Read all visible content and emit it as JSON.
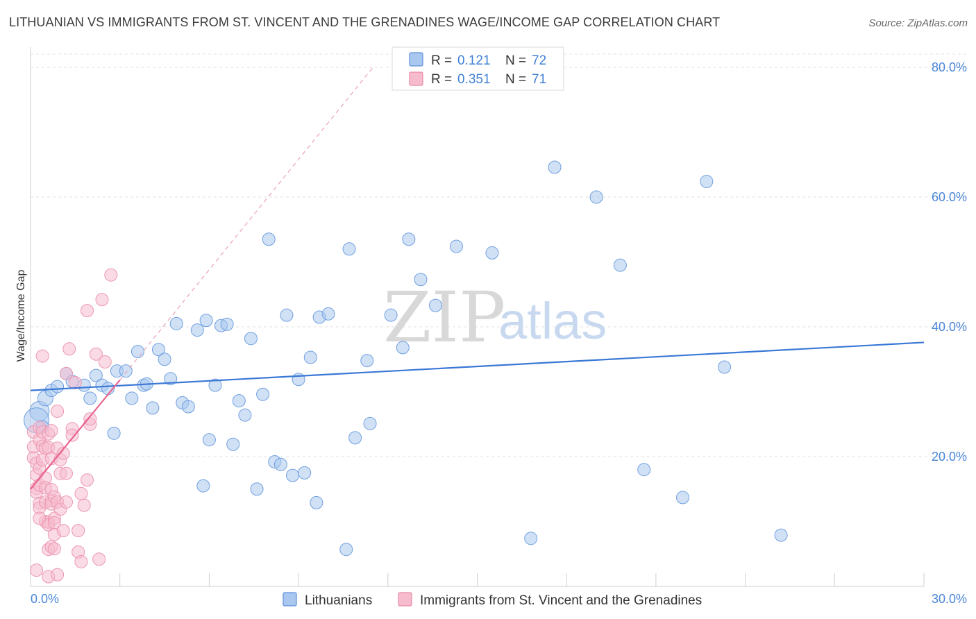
{
  "title": "LITHUANIAN VS IMMIGRANTS FROM ST. VINCENT AND THE GRENADINES WAGE/INCOME GAP CORRELATION CHART",
  "source": "Source: ZipAtlas.com",
  "watermark": {
    "zip": "ZIP",
    "atlas": "atlas"
  },
  "colors": {
    "blue": "#3a78d6",
    "blue_fill": "#aac8ef",
    "pink": "#e8638e",
    "pink_fill": "#f6bccd",
    "grid": "#e0e0e0",
    "axis_text": "#4a86d8"
  },
  "legend": {
    "rows": [
      {
        "r_label": "R =",
        "r_value": "0.121",
        "n_label": "N =",
        "n_value": "72"
      },
      {
        "r_label": "R =",
        "r_value": "0.351",
        "n_label": "N =",
        "n_value": "71"
      }
    ]
  },
  "bottom_legend": [
    "Lithuanians",
    "Immigrants from St. Vincent and the Grenadines"
  ],
  "chart_data": {
    "type": "scatter",
    "title": "LITHUANIAN VS IMMIGRANTS FROM ST. VINCENT AND THE GRENADINES WAGE/INCOME GAP CORRELATION CHART",
    "xlabel": "",
    "ylabel": "Wage/Income Gap",
    "xlim": [
      0,
      30
    ],
    "ylim": [
      0,
      80
    ],
    "x_tick_labels": [
      "0.0%",
      "30.0%"
    ],
    "y_tick_labels": [
      "20.0%",
      "40.0%",
      "60.0%",
      "80.0%"
    ],
    "y_ticks": [
      20,
      40,
      60,
      80
    ],
    "x_minor_ticks": [
      0,
      3,
      6,
      9,
      12,
      15,
      18,
      21,
      24,
      27,
      30
    ],
    "series": [
      {
        "name": "Lithuanians",
        "color": "blue",
        "R": 0.121,
        "N": 72,
        "trend": {
          "x": [
            0,
            30
          ],
          "y": [
            30.2,
            37.6
          ],
          "style": "solid"
        },
        "points": [
          [
            0.3,
            27.0,
            14
          ],
          [
            0.5,
            29.0,
            11
          ],
          [
            0.7,
            30.2,
            9
          ],
          [
            0.9,
            30.8,
            9
          ],
          [
            1.2,
            32.8,
            9
          ],
          [
            1.4,
            31.6,
            9
          ],
          [
            1.8,
            31.0,
            9
          ],
          [
            2.0,
            29.0,
            9
          ],
          [
            2.2,
            32.5,
            9
          ],
          [
            2.4,
            31.0,
            9
          ],
          [
            2.6,
            30.5,
            9
          ],
          [
            2.8,
            23.6,
            9
          ],
          [
            2.9,
            33.2,
            9
          ],
          [
            3.2,
            33.2,
            9
          ],
          [
            3.4,
            29.0,
            9
          ],
          [
            3.6,
            36.2,
            9
          ],
          [
            3.8,
            31.0,
            9
          ],
          [
            3.9,
            31.2,
            9
          ],
          [
            4.1,
            27.5,
            9
          ],
          [
            4.3,
            36.5,
            9
          ],
          [
            4.5,
            35.0,
            9
          ],
          [
            4.7,
            32.0,
            9
          ],
          [
            4.9,
            40.5,
            9
          ],
          [
            5.1,
            28.3,
            9
          ],
          [
            5.3,
            27.7,
            9
          ],
          [
            5.6,
            39.5,
            9
          ],
          [
            5.8,
            15.5,
            9
          ],
          [
            5.9,
            41.0,
            9
          ],
          [
            6.0,
            22.6,
            9
          ],
          [
            6.2,
            31.0,
            9
          ],
          [
            6.4,
            40.2,
            9
          ],
          [
            6.6,
            40.4,
            9
          ],
          [
            6.8,
            21.9,
            9
          ],
          [
            7.0,
            28.6,
            9
          ],
          [
            7.2,
            26.4,
            9
          ],
          [
            7.4,
            38.2,
            9
          ],
          [
            7.6,
            15.0,
            9
          ],
          [
            7.8,
            29.6,
            9
          ],
          [
            8.0,
            53.5,
            9
          ],
          [
            8.2,
            19.2,
            9
          ],
          [
            8.4,
            18.8,
            9
          ],
          [
            8.6,
            41.8,
            9
          ],
          [
            8.8,
            17.1,
            9
          ],
          [
            9.0,
            31.9,
            9
          ],
          [
            9.2,
            17.5,
            9
          ],
          [
            9.4,
            35.3,
            9
          ],
          [
            9.6,
            12.9,
            9
          ],
          [
            9.7,
            41.5,
            9
          ],
          [
            10.0,
            42.0,
            9
          ],
          [
            10.6,
            5.7,
            9
          ],
          [
            10.7,
            52.0,
            9
          ],
          [
            10.9,
            22.9,
            9
          ],
          [
            11.3,
            34.8,
            9
          ],
          [
            11.4,
            25.1,
            9
          ],
          [
            12.1,
            41.8,
            9
          ],
          [
            12.5,
            36.8,
            9
          ],
          [
            12.7,
            53.5,
            9
          ],
          [
            13.1,
            47.3,
            9
          ],
          [
            13.6,
            43.3,
            9
          ],
          [
            14.3,
            52.4,
            9
          ],
          [
            15.5,
            51.4,
            9
          ],
          [
            16.8,
            7.4,
            9
          ],
          [
            17.6,
            64.6,
            9
          ],
          [
            19.0,
            60.0,
            9
          ],
          [
            19.8,
            49.5,
            9
          ],
          [
            20.6,
            18.0,
            9
          ],
          [
            21.9,
            13.7,
            9
          ],
          [
            22.7,
            62.4,
            9
          ],
          [
            23.3,
            33.8,
            9
          ],
          [
            25.2,
            7.9,
            9
          ],
          [
            0.2,
            25.6,
            18
          ],
          [
            0.4,
            24.6,
            9
          ]
        ]
      },
      {
        "name": "Immigrants from St. Vincent and the Grenadines",
        "color": "pink",
        "R": 0.351,
        "N": 71,
        "trend": {
          "x": [
            0,
            3.0
          ],
          "y": [
            15.0,
            31.8
          ],
          "style": "solid"
        },
        "trend_extended": {
          "x": [
            3.0,
            11.5
          ],
          "y": [
            31.8,
            80.0
          ],
          "style": "dashed"
        },
        "points": [
          [
            0.1,
            23.8,
            9
          ],
          [
            0.1,
            21.5,
            9
          ],
          [
            0.1,
            19.8,
            9
          ],
          [
            0.2,
            19.0,
            9
          ],
          [
            0.2,
            17.2,
            9
          ],
          [
            0.2,
            15.1,
            9
          ],
          [
            0.2,
            14.5,
            9
          ],
          [
            0.3,
            24.5,
            9
          ],
          [
            0.3,
            22.6,
            9
          ],
          [
            0.3,
            18.2,
            9
          ],
          [
            0.3,
            15.6,
            9
          ],
          [
            0.3,
            12.8,
            9
          ],
          [
            0.3,
            12.1,
            9
          ],
          [
            0.4,
            21.6,
            9
          ],
          [
            0.4,
            19.5,
            9
          ],
          [
            0.4,
            35.5,
            9
          ],
          [
            0.4,
            23.8,
            9
          ],
          [
            0.5,
            21.3,
            9
          ],
          [
            0.5,
            16.7,
            9
          ],
          [
            0.5,
            15.2,
            9
          ],
          [
            0.5,
            13.0,
            9
          ],
          [
            0.5,
            10.0,
            9
          ],
          [
            0.6,
            23.5,
            9
          ],
          [
            0.6,
            21.4,
            9
          ],
          [
            0.6,
            9.9,
            9
          ],
          [
            0.6,
            9.5,
            9
          ],
          [
            0.6,
            5.7,
            9
          ],
          [
            0.6,
            1.5,
            9
          ],
          [
            0.7,
            24.0,
            9
          ],
          [
            0.7,
            19.7,
            9
          ],
          [
            0.7,
            14.9,
            9
          ],
          [
            0.7,
            13.2,
            9
          ],
          [
            0.7,
            12.7,
            9
          ],
          [
            0.7,
            6.1,
            9
          ],
          [
            0.8,
            13.8,
            9
          ],
          [
            0.8,
            10.5,
            9
          ],
          [
            0.8,
            9.8,
            9
          ],
          [
            0.8,
            8.0,
            9
          ],
          [
            0.8,
            5.8,
            9
          ],
          [
            0.9,
            13.0,
            9
          ],
          [
            0.9,
            21.3,
            9
          ],
          [
            0.9,
            1.8,
            9
          ],
          [
            1.0,
            17.4,
            9
          ],
          [
            1.0,
            19.5,
            9
          ],
          [
            1.0,
            11.9,
            9
          ],
          [
            1.1,
            8.6,
            9
          ],
          [
            1.2,
            32.8,
            9
          ],
          [
            1.2,
            17.4,
            9
          ],
          [
            1.2,
            13.0,
            9
          ],
          [
            1.3,
            36.6,
            9
          ],
          [
            1.4,
            24.3,
            9
          ],
          [
            1.4,
            23.3,
            9
          ],
          [
            1.5,
            31.4,
            9
          ],
          [
            1.6,
            5.3,
            9
          ],
          [
            1.6,
            8.6,
            9
          ],
          [
            1.7,
            3.8,
            9
          ],
          [
            1.7,
            14.3,
            9
          ],
          [
            1.9,
            42.5,
            9
          ],
          [
            1.9,
            16.4,
            9
          ],
          [
            2.0,
            25.0,
            9
          ],
          [
            2.0,
            25.8,
            9
          ],
          [
            2.2,
            35.8,
            9
          ],
          [
            2.3,
            4.2,
            9
          ],
          [
            2.5,
            34.6,
            9
          ],
          [
            2.4,
            44.2,
            9
          ],
          [
            2.7,
            48.0,
            9
          ],
          [
            0.2,
            2.5,
            9
          ],
          [
            1.1,
            20.5,
            9
          ],
          [
            0.9,
            27.0,
            9
          ],
          [
            1.8,
            12.5,
            9
          ],
          [
            0.3,
            10.5,
            9
          ]
        ]
      }
    ]
  }
}
